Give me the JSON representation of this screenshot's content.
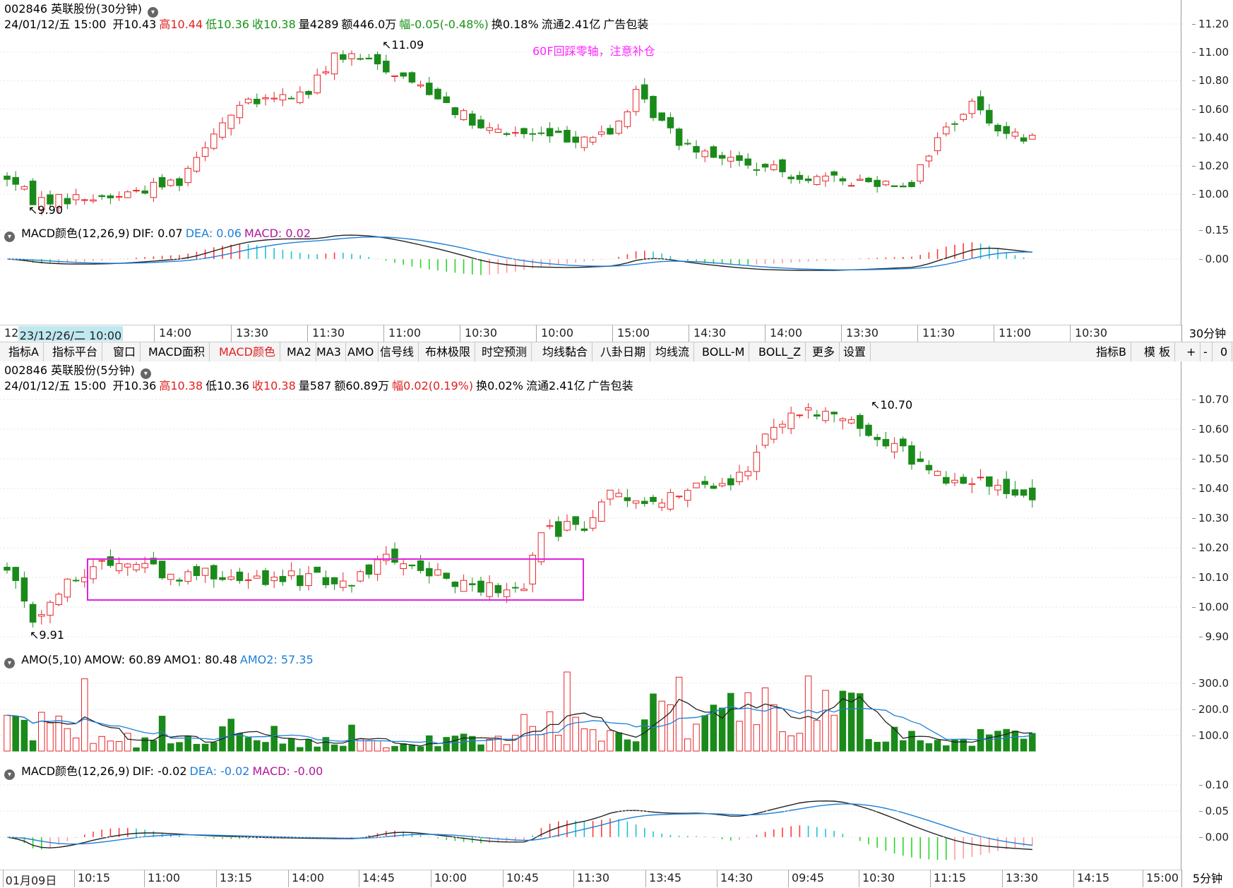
{
  "top": {
    "title": "002846 英联股份(30分钟)",
    "dropdown_icon": "chevron-down-icon",
    "info": {
      "date": "24/01/12/五 15:00",
      "open": "开10.43",
      "high": "高10.44",
      "low": "低10.36",
      "close": "收10.38",
      "vol": "量4289",
      "amt": "额446.0万",
      "chg": "幅-0.05(-0.48%)",
      "turn": "换0.18%",
      "float": "流通2.41亿",
      "industry": "广告包装"
    },
    "annotation": "60F回踩零轴，注意补仓",
    "hi_label": "11.09",
    "lo_label": "9.90",
    "yticks": [
      "11.20",
      "11.00",
      "10.80",
      "10.60",
      "10.40",
      "10.20",
      "10.00"
    ]
  },
  "top_macd": {
    "header": {
      "name": "MACD颜色(12,26,9)",
      "dif": "DIF: 0.07",
      "dea": "DEA: 0.06",
      "macd": "MACD: 0.02"
    },
    "yticks": [
      "0.15",
      "0.00"
    ]
  },
  "top_time": {
    "cursor_label": "23/12/26/二 10:00",
    "first_label": "12",
    "labels": [
      "14:00",
      "13:30",
      "11:30",
      "11:00",
      "10:30",
      "10:00",
      "15:00",
      "14:30",
      "14:00",
      "13:30",
      "11:30",
      "11:00",
      "10:30"
    ],
    "period": "30分钟"
  },
  "toolbar": {
    "items": [
      "指标A",
      "指标平台",
      "窗口",
      "MACD面积",
      "MACD颜色",
      "MA2",
      "MA3",
      "AMO",
      "信号线",
      "布林极限",
      "时空预测",
      "均线黏合",
      "八卦日期",
      "均线流",
      "BOLL-M",
      "BOLL_Z",
      "更多",
      "设置"
    ],
    "active": "MACD颜色",
    "right_items": [
      "指标B",
      "模 板",
      "+",
      "-",
      "0"
    ]
  },
  "bottom": {
    "title": "002846 英联股份(5分钟)",
    "dropdown_icon": "chevron-down-icon",
    "info": {
      "date": "24/01/12/五 15:00",
      "open": "开10.36",
      "high": "高10.38",
      "low": "低10.36",
      "close": "收10.38",
      "vol": "量587",
      "amt": "额60.89万",
      "chg": "幅0.02(0.19%)",
      "turn": "换0.02%",
      "float": "流通2.41亿",
      "industry": "广告包装"
    },
    "hi_label": "10.70",
    "lo_label": "9.91",
    "yticks": [
      "10.70",
      "10.60",
      "10.50",
      "10.40",
      "10.30",
      "10.20",
      "10.10",
      "10.00",
      "9.90"
    ]
  },
  "amo": {
    "header": {
      "name": "AMO(5,10)",
      "amow": "AMOW: 60.89",
      "amo1": "AMO1: 80.48",
      "amo2": "AMO2: 57.35"
    },
    "yticks": [
      "300.0",
      "200.0",
      "100.0"
    ]
  },
  "bottom_macd": {
    "header": {
      "name": "MACD颜色(12,26,9)",
      "dif": "DIF: -0.02",
      "dea": "DEA: -0.02",
      "macd": "MACD: -0.00"
    },
    "yticks": [
      "0.10",
      "0.05",
      "0.00"
    ]
  },
  "bottom_time": {
    "labels": [
      "01月09日",
      "10:15",
      "11:00",
      "13:15",
      "14:00",
      "14:45",
      "10:00",
      "10:45",
      "11:30",
      "13:45",
      "14:30",
      "09:45",
      "10:30",
      "11:15",
      "13:30",
      "14:15",
      "15:00"
    ],
    "period": "5分钟"
  },
  "colors": {
    "up": "#e8252a",
    "down": "#1a8a1a",
    "dif": "#222222",
    "dea": "#1e7fd8",
    "macd_up": "#ff3b3b",
    "macd_down": "#2ad62a",
    "macd_up_fade": "#1ec3d4",
    "macd_down_fade": "#ff9a9a",
    "box": "#e020e0",
    "annotation": "#ff26ff"
  }
}
